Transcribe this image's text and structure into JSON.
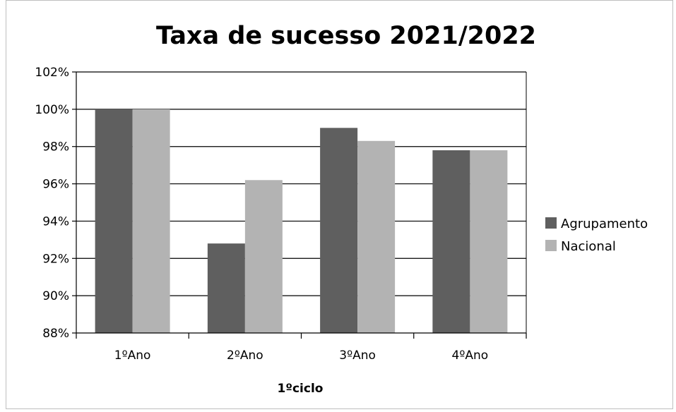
{
  "chart_data": {
    "type": "bar",
    "title": "Taxa de sucesso 2021/2022",
    "xlabel": "1ºciclo",
    "ylabel": "",
    "categories": [
      "1ºAno",
      "2ºAno",
      "3ºAno",
      "4ºAno"
    ],
    "series": [
      {
        "name": "Agrupamento",
        "values": [
          100,
          92.8,
          99,
          97.8
        ],
        "color": "#5f5f5f"
      },
      {
        "name": "Nacional",
        "values": [
          100,
          96.2,
          98.3,
          97.8
        ],
        "color": "#b3b3b3"
      }
    ],
    "ylim": [
      88,
      102
    ],
    "yticks": [
      88,
      90,
      92,
      94,
      96,
      98,
      100,
      102
    ],
    "ytick_labels": [
      "88%",
      "90%",
      "92%",
      "94%",
      "96%",
      "98%",
      "100%",
      "102%"
    ],
    "grid": true,
    "legend_position": "right"
  }
}
